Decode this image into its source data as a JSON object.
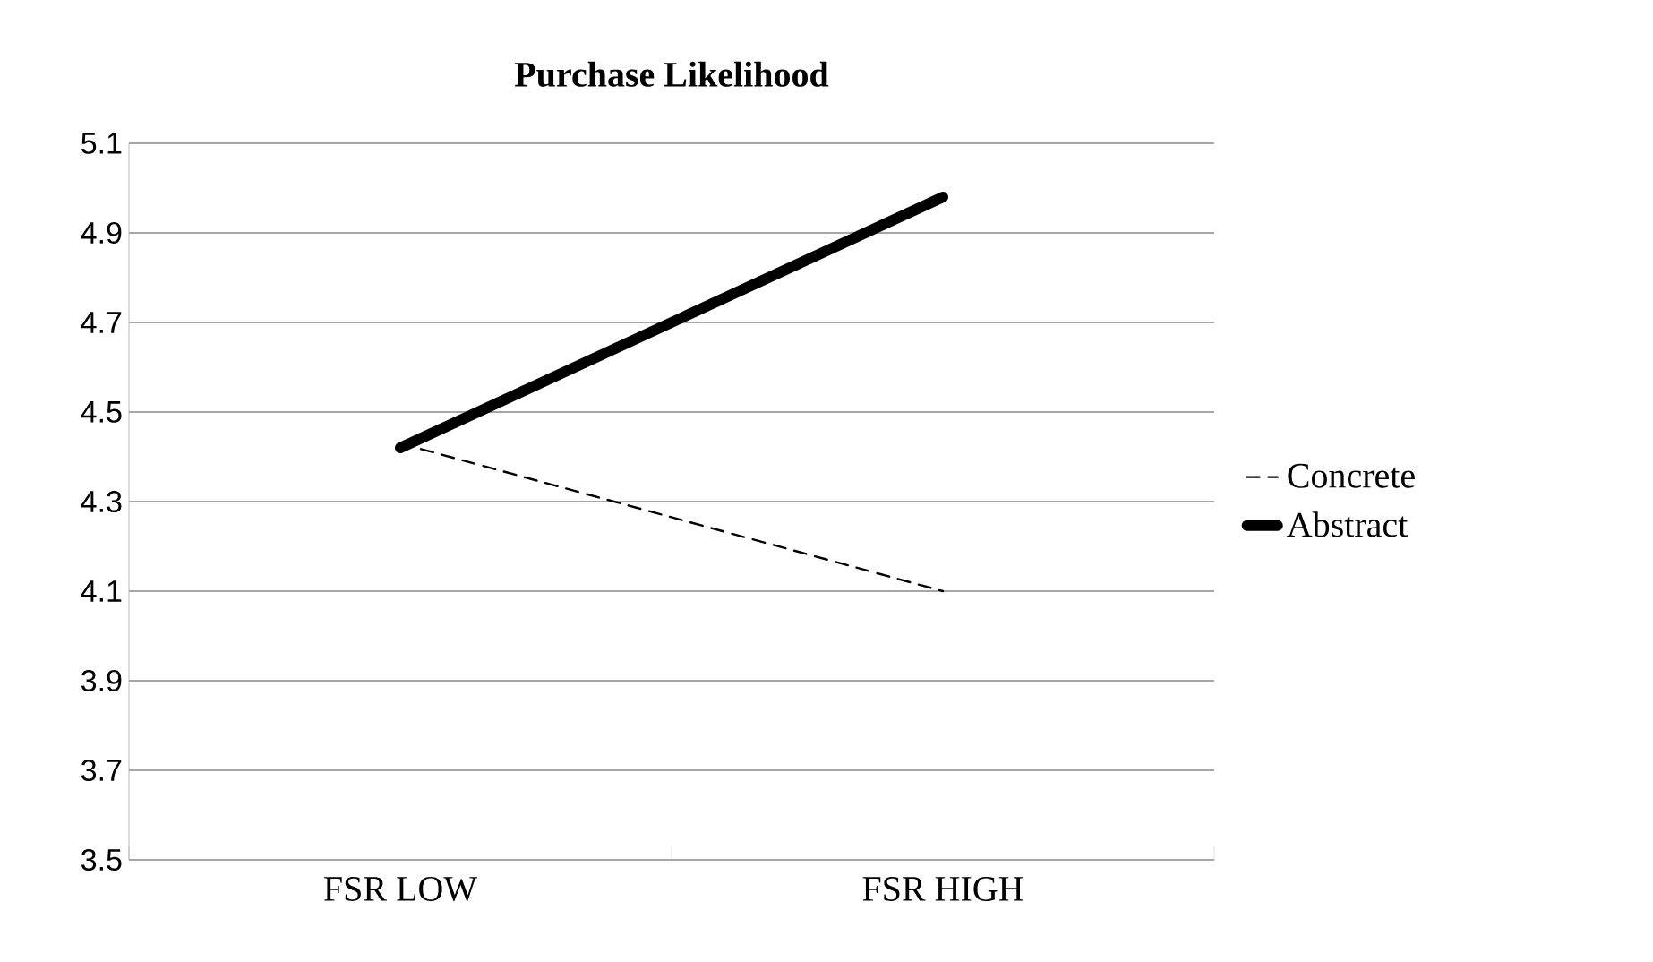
{
  "chart_data": {
    "type": "line",
    "title": "Purchase Likelihood",
    "categories": [
      "FSR LOW",
      "FSR HIGH"
    ],
    "series": [
      {
        "name": "Concrete",
        "color": "#000000",
        "line_style": "dashed",
        "values": [
          4.43,
          4.1
        ]
      },
      {
        "name": "Abstract",
        "color": "#000000",
        "line_style": "solid",
        "values": [
          4.42,
          4.98
        ]
      }
    ],
    "ylim": [
      3.5,
      5.1
    ],
    "yticks": [
      3.5,
      3.7,
      3.9,
      4.1,
      4.3,
      4.5,
      4.7,
      4.9,
      5.1
    ],
    "grid": "y",
    "legend": "right",
    "marker": "none"
  }
}
